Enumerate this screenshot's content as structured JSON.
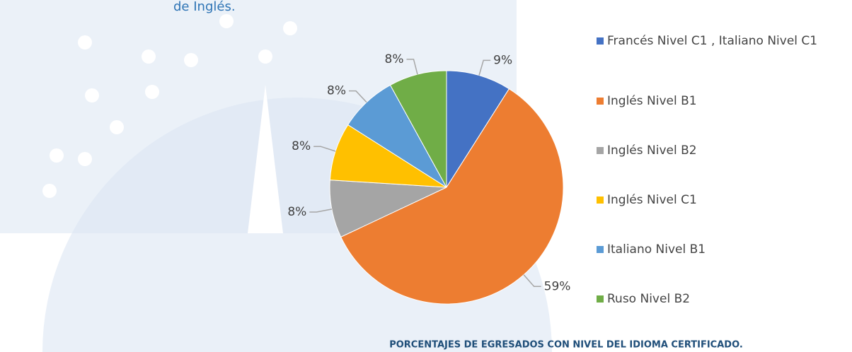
{
  "chart_data": {
    "type": "pie",
    "title": "de Inglés.",
    "caption": "PORCENTAJES DE EGRESADOS CON NIVEL DEL IDIOMA CERTIFICADO.",
    "categories": [
      "Francés Nivel C1 , Italiano Nivel C1",
      "Inglés Nivel B1",
      "Inglés Nivel B2",
      "Inglés Nivel C1",
      "Italiano Nivel B1",
      "Ruso Nivel B2"
    ],
    "values": [
      9,
      59,
      8,
      8,
      8,
      8
    ],
    "value_labels": [
      "9%",
      "59%",
      "8%",
      "8%",
      "8%",
      "8%"
    ],
    "colors": [
      "#4472c4",
      "#ed7d31",
      "#a5a5a5",
      "#ffc000",
      "#5b9bd5",
      "#70ad47"
    ],
    "legend": "right"
  }
}
